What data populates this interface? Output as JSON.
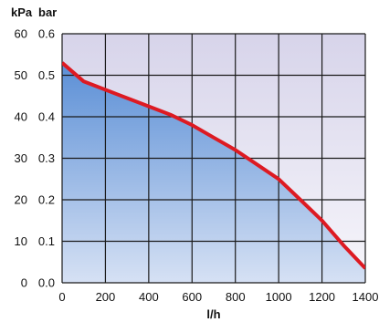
{
  "chart_data": {
    "type": "area",
    "title": "",
    "xlabel": "l/h",
    "ylabel_left": "kPa",
    "ylabel_right": "bar",
    "x_ticks": [
      "0",
      "200",
      "400",
      "600",
      "800",
      "1000",
      "1200",
      "1400"
    ],
    "y_ticks_kpa": [
      "0",
      "10",
      "20",
      "30",
      "40",
      "50",
      "60"
    ],
    "y_ticks_bar": [
      "0.0",
      "0.1",
      "0.2",
      "0.3",
      "0.4",
      "0.5",
      "0.6"
    ],
    "xlim": [
      0,
      1400
    ],
    "ylim_kpa": [
      0,
      60
    ],
    "ylim_bar": [
      0,
      0.6
    ],
    "grid": true,
    "series": [
      {
        "x": [
          0,
          100,
          200,
          300,
          400,
          500,
          600,
          700,
          800,
          900,
          1000,
          1100,
          1200,
          1300,
          1400
        ],
        "y_bar": [
          0.53,
          0.485,
          0.465,
          0.445,
          0.425,
          0.405,
          0.38,
          0.35,
          0.32,
          0.285,
          0.25,
          0.2,
          0.15,
          0.09,
          0.035
        ]
      }
    ],
    "colors": {
      "line": "#dd1a22",
      "fill_top": "#5b8fd6",
      "fill_bottom": "#d6e1f4",
      "background_top": "#d7d4ea",
      "background_bottom": "#f7f6fb",
      "grid": "#1a1a1a"
    }
  }
}
